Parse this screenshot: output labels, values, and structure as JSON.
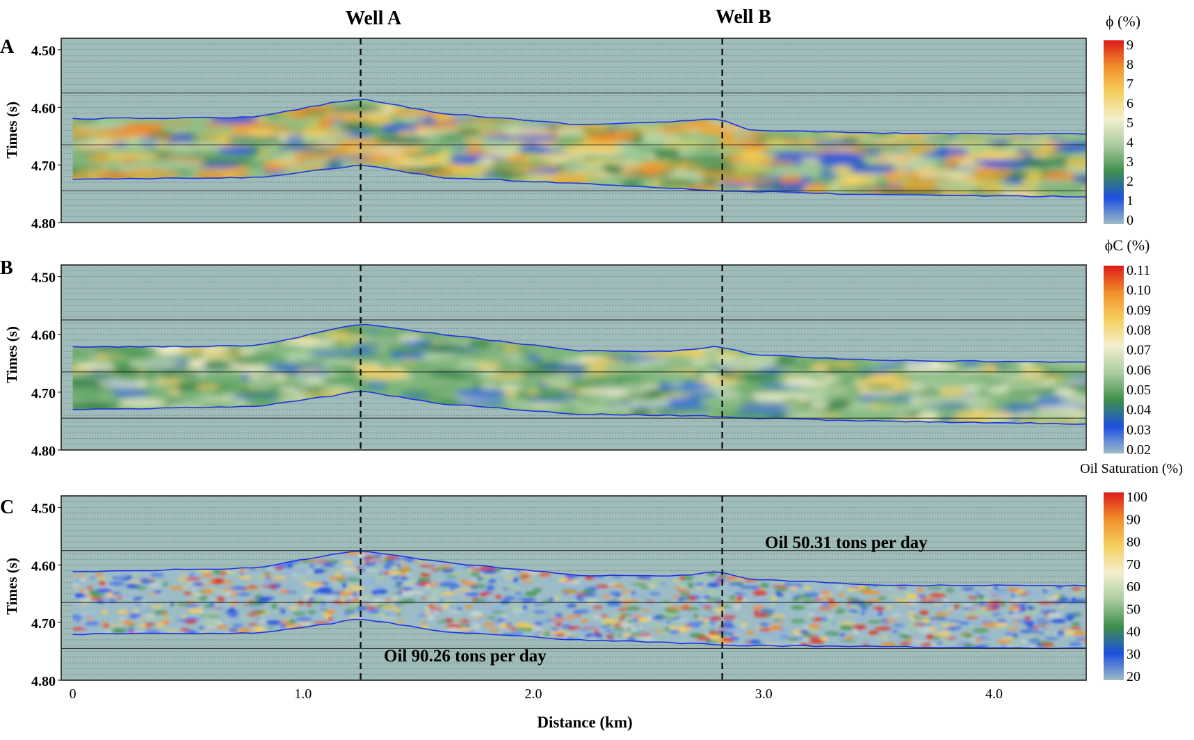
{
  "wells": [
    {
      "name": "Well A",
      "x_km": 1.25
    },
    {
      "name": "Well B",
      "x_km": 2.82
    }
  ],
  "x_axis": {
    "label": "Distance (km)",
    "range": [
      -0.05,
      4.4
    ],
    "ticks": [
      {
        "value": 0,
        "label": "0"
      },
      {
        "value": 1.0,
        "label": "1.0"
      },
      {
        "value": 2.0,
        "label": "2.0"
      },
      {
        "value": 3.0,
        "label": "3.0"
      },
      {
        "value": 4.0,
        "label": "4.0"
      }
    ]
  },
  "colors": {
    "background": "#9fbbba",
    "horizon": "#2233dd",
    "well_line": "#111111",
    "colorscale": [
      "#9cbcc8",
      "#1f4fe0",
      "#3f8f4a",
      "#a9cca0",
      "#f3efcf",
      "#f5d060",
      "#f0902a",
      "#dd1a1a"
    ]
  },
  "panels": [
    {
      "letter": "A",
      "ylabel": "Times (s)",
      "ylim": [
        4.8,
        4.48
      ],
      "yticks": [
        "4.50",
        "4.60",
        "4.70",
        "4.80"
      ],
      "colorbar": {
        "title": "ϕ (%)",
        "labels": [
          "9",
          "8",
          "7",
          "6",
          "5",
          "4",
          "3",
          "2",
          "1",
          "0"
        ]
      },
      "annotations": []
    },
    {
      "letter": "B",
      "ylabel": "Times (s)",
      "ylim": [
        4.8,
        4.48
      ],
      "yticks": [
        "4.50",
        "4.60",
        "4.70",
        "4.80"
      ],
      "colorbar": {
        "title": "ϕC (%)",
        "labels": [
          "0.11",
          "0.10",
          "0.09",
          "0.08",
          "0.07",
          "0.06",
          "0.05",
          "0.04",
          "0.03",
          "0.02"
        ]
      },
      "annotations": []
    },
    {
      "letter": "C",
      "ylabel": "Times (s)",
      "ylim": [
        4.8,
        4.48
      ],
      "yticks": [
        "4.50",
        "4.60",
        "4.70",
        "4.80"
      ],
      "colorbar": {
        "title": "Oil Saturation (%)",
        "labels": [
          "100",
          "90",
          "80",
          "70",
          "60",
          "50",
          "40",
          "30",
          "20"
        ]
      },
      "annotations": [
        "Oil 50.31 tons per day",
        "Oil 90.26 tons per day"
      ]
    }
  ],
  "chart_data": [
    {
      "type": "heatmap",
      "panel": "A",
      "title": "",
      "xlabel": "Distance (km)",
      "ylabel": "Times (s)",
      "zlabel": "ϕ (%)",
      "zlim": [
        0,
        9
      ],
      "top_horizon": {
        "x": [
          0,
          0.8,
          1.15,
          1.25,
          1.6,
          2.2,
          2.6,
          2.8,
          2.95,
          3.5,
          4.4
        ],
        "y": [
          4.62,
          4.617,
          4.59,
          4.585,
          4.61,
          4.63,
          4.625,
          4.62,
          4.64,
          4.645,
          4.646
        ]
      },
      "bottom_horizon": {
        "x": [
          0,
          0.8,
          1.15,
          1.25,
          1.6,
          2.2,
          2.6,
          2.8,
          2.95,
          3.5,
          4.4
        ],
        "y": [
          4.725,
          4.722,
          4.705,
          4.7,
          4.722,
          4.732,
          4.74,
          4.745,
          4.746,
          4.752,
          4.755
        ]
      }
    },
    {
      "type": "heatmap",
      "panel": "B",
      "title": "",
      "xlabel": "Distance (km)",
      "ylabel": "Times (s)",
      "zlabel": "ϕC (%)",
      "zlim": [
        0.02,
        0.11
      ],
      "top_horizon": {
        "x": [
          0,
          0.8,
          1.15,
          1.25,
          1.6,
          2.2,
          2.6,
          2.8,
          2.95,
          3.5,
          4.4
        ],
        "y": [
          4.622,
          4.62,
          4.59,
          4.582,
          4.6,
          4.628,
          4.63,
          4.62,
          4.635,
          4.645,
          4.648
        ]
      },
      "bottom_horizon": {
        "x": [
          0,
          0.8,
          1.15,
          1.25,
          1.6,
          2.2,
          2.6,
          2.8,
          2.95,
          3.5,
          4.4
        ],
        "y": [
          4.73,
          4.725,
          4.705,
          4.698,
          4.72,
          4.738,
          4.74,
          4.742,
          4.745,
          4.75,
          4.755
        ]
      }
    },
    {
      "type": "heatmap",
      "panel": "C",
      "title": "",
      "xlabel": "Distance (km)",
      "ylabel": "Times (s)",
      "zlabel": "Oil Saturation (%)",
      "zlim": [
        20,
        100
      ],
      "top_horizon": {
        "x": [
          0,
          0.8,
          1.15,
          1.25,
          1.6,
          2.2,
          2.6,
          2.8,
          2.95,
          3.5,
          4.4
        ],
        "y": [
          4.612,
          4.605,
          4.58,
          4.575,
          4.595,
          4.618,
          4.62,
          4.612,
          4.625,
          4.635,
          4.636
        ]
      },
      "bottom_horizon": {
        "x": [
          0,
          0.8,
          1.15,
          1.25,
          1.6,
          2.2,
          2.6,
          2.8,
          2.95,
          3.5,
          4.4
        ],
        "y": [
          4.72,
          4.718,
          4.7,
          4.693,
          4.715,
          4.73,
          4.735,
          4.738,
          4.74,
          4.742,
          4.745
        ]
      }
    }
  ]
}
